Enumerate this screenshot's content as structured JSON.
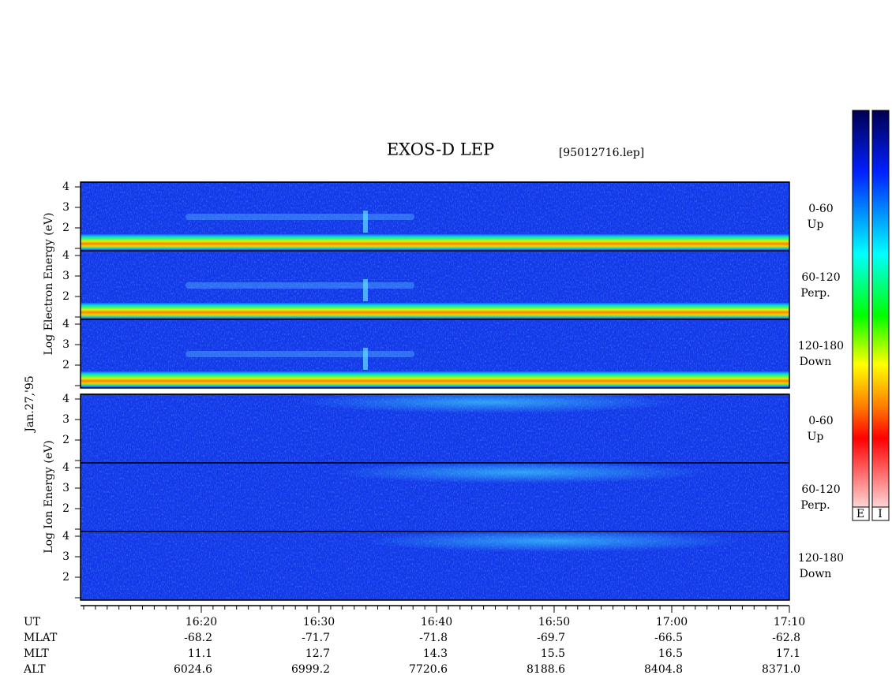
{
  "title": "EXOS-D LEP",
  "file": "[95012716.lep]",
  "date": "Jan.27,'95",
  "electron": {
    "axis_label": "Log Electron Energy (eV)",
    "panels": [
      {
        "angle": "0-60",
        "direction": "Up"
      },
      {
        "angle": "60-120",
        "direction": "Perp."
      },
      {
        "angle": "120-180",
        "direction": "Down"
      }
    ]
  },
  "ion": {
    "axis_label": "Log Ion Energy (eV)",
    "panels": [
      {
        "angle": "0-60",
        "direction": "Up"
      },
      {
        "angle": "60-120",
        "direction": "Perp."
      },
      {
        "angle": "120-180",
        "direction": "Down"
      }
    ]
  },
  "energy_ticks": [
    2,
    3,
    4
  ],
  "time_axis": {
    "rows": [
      "UT",
      "MLAT",
      "MLT",
      "ALT"
    ],
    "columns": [
      [
        "16:20",
        "-68.2",
        "11.1",
        "6024.6"
      ],
      [
        "16:30",
        "-71.7",
        "12.7",
        "6999.2"
      ],
      [
        "16:40",
        "-71.8",
        "14.3",
        "7720.6"
      ],
      [
        "16:50",
        "-69.7",
        "15.5",
        "8188.6"
      ],
      [
        "17:00",
        "-66.5",
        "16.5",
        "8404.8"
      ],
      [
        "17:10",
        "-62.8",
        "17.1",
        "8371.0"
      ]
    ]
  },
  "colorbar_labels": [
    "E",
    "I"
  ]
}
